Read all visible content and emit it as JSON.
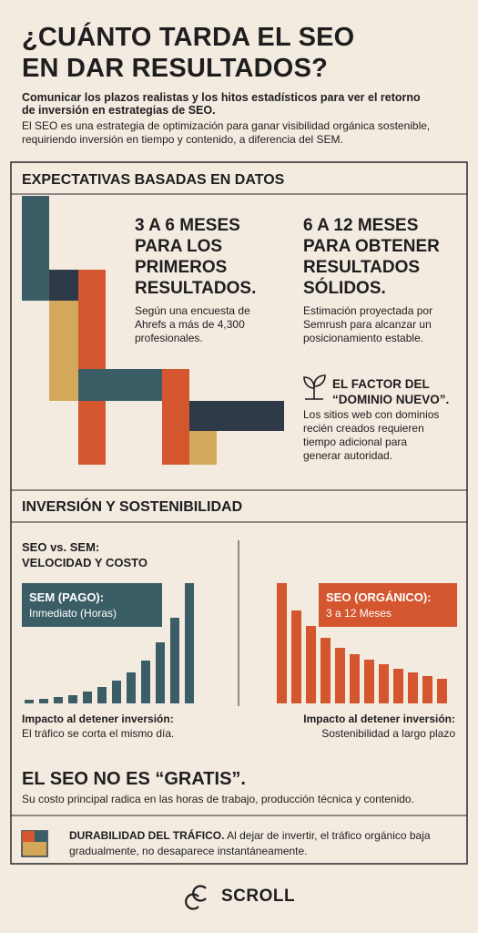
{
  "header": {
    "title": [
      "¿CUÁNTO TARDA EL SEO",
      "EN DAR RESULTADOS?"
    ],
    "subtitle": "Comunicar los plazos realistas y los hitos estadísticos para ver el retorno de inversión en estrategias de SEO.",
    "intro": "El SEO es una estrategia de optimización para ganar visibilidad orgánica sostenible, requiriendo inversión en tiempo y contenido, a diferencia del SEM."
  },
  "expectations": {
    "heading": "EXPECTATIVAS BASADAS EN DATOS",
    "items": [
      {
        "title": [
          "3 A 6 MESES",
          "PARA LOS",
          "PRIMEROS",
          "RESULTADOS."
        ],
        "text": "Según una encuesta de Ahrefs a más de 4,300 profesionales."
      },
      {
        "title": [
          "6 A 12 MESES",
          "PARA OBTENER",
          "RESULTADOS",
          "SÓLIDOS."
        ],
        "text": "Estimación proyectada por Semrush para alcanzar un posicionamiento estable."
      }
    ],
    "factor": {
      "title": [
        "EL FACTOR DEL",
        "“DOMINIO NUEVO”."
      ],
      "text": "Los sitios web con dominios recién creados requieren tiempo adicional para generar autoridad."
    }
  },
  "investment": {
    "heading": "INVERSIÓN Y SOSTENIBILIDAD",
    "comparison_title": [
      "SEO vs. SEM:",
      "VELOCIDAD Y COSTO"
    ],
    "sem": {
      "label": "SEM (PAGO):",
      "detail": "Inmediato (Horas)",
      "impact_title": "Impacto al detener inversión:",
      "impact_text": "El tráfico se corta el mismo día."
    },
    "seo": {
      "label": "SEO (ORGÁNICO):",
      "detail": "3 a 12 Meses",
      "impact_title": "Impacto al detener inversión:",
      "impact_text": "Sostenibilidad a largo plazo"
    }
  },
  "cost": {
    "title": "EL SEO NO ES “GRATIS”.",
    "text": "Su costo principal radica en las horas de trabajo, producción técnica y contenido."
  },
  "durability": {
    "title": "DURABILIDAD DEL TRÁFICO.",
    "text": "Al dejar de invertir, el tráfico orgánico baja gradualmente, no desaparece instantáneamente."
  },
  "footer": {
    "brand": "SCROLL"
  }
}
